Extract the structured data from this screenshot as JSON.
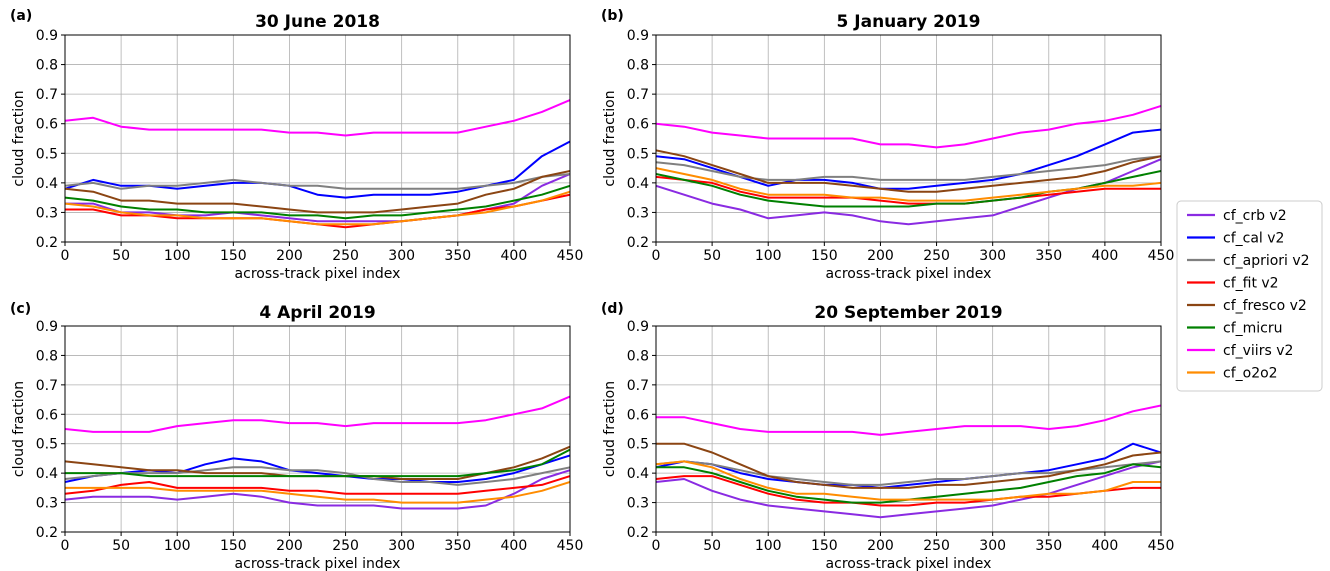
{
  "chart_data": [
    {
      "panel_label": "(a)",
      "type": "line",
      "title": "30 June 2018",
      "xlabel": "across-track pixel index",
      "ylabel": "cloud fraction",
      "xlim": [
        0,
        450
      ],
      "ylim": [
        0.2,
        0.9
      ],
      "x": [
        0,
        25,
        50,
        75,
        100,
        125,
        150,
        175,
        200,
        225,
        250,
        275,
        300,
        325,
        350,
        375,
        400,
        425,
        450
      ],
      "series": [
        {
          "name": "cf_crb v2",
          "color": "#8a2be2",
          "values": [
            0.33,
            0.33,
            0.3,
            0.3,
            0.29,
            0.29,
            0.3,
            0.29,
            0.28,
            0.27,
            0.27,
            0.27,
            0.27,
            0.28,
            0.29,
            0.31,
            0.33,
            0.39,
            0.43
          ]
        },
        {
          "name": "cf_cal v2",
          "color": "#0000ff",
          "values": [
            0.38,
            0.41,
            0.39,
            0.39,
            0.38,
            0.39,
            0.4,
            0.4,
            0.39,
            0.36,
            0.35,
            0.36,
            0.36,
            0.36,
            0.37,
            0.39,
            0.41,
            0.49,
            0.54
          ]
        },
        {
          "name": "cf_apriori v2",
          "color": "#808080",
          "values": [
            0.39,
            0.4,
            0.38,
            0.39,
            0.39,
            0.4,
            0.41,
            0.4,
            0.39,
            0.39,
            0.38,
            0.38,
            0.38,
            0.38,
            0.38,
            0.39,
            0.4,
            0.42,
            0.43
          ]
        },
        {
          "name": "cf_fit v2",
          "color": "#ff0000",
          "values": [
            0.31,
            0.31,
            0.29,
            0.29,
            0.28,
            0.28,
            0.28,
            0.28,
            0.27,
            0.26,
            0.25,
            0.26,
            0.27,
            0.28,
            0.29,
            0.31,
            0.32,
            0.34,
            0.36
          ]
        },
        {
          "name": "cf_fresco v2",
          "color": "#8b4513",
          "values": [
            0.38,
            0.37,
            0.34,
            0.34,
            0.33,
            0.33,
            0.33,
            0.32,
            0.31,
            0.3,
            0.3,
            0.3,
            0.31,
            0.32,
            0.33,
            0.36,
            0.38,
            0.42,
            0.44
          ]
        },
        {
          "name": "cf_micru",
          "color": "#008000",
          "values": [
            0.35,
            0.34,
            0.32,
            0.31,
            0.31,
            0.3,
            0.3,
            0.3,
            0.29,
            0.29,
            0.28,
            0.29,
            0.29,
            0.3,
            0.31,
            0.32,
            0.34,
            0.36,
            0.39
          ]
        },
        {
          "name": "cf_viirs v2",
          "color": "#ff00ff",
          "values": [
            0.61,
            0.62,
            0.59,
            0.58,
            0.58,
            0.58,
            0.58,
            0.58,
            0.57,
            0.57,
            0.56,
            0.57,
            0.57,
            0.57,
            0.57,
            0.59,
            0.61,
            0.64,
            0.68
          ]
        },
        {
          "name": "cf_o2o2",
          "color": "#ff8c00",
          "values": [
            0.33,
            0.32,
            0.3,
            0.29,
            0.29,
            0.28,
            0.28,
            0.28,
            0.27,
            0.26,
            0.26,
            0.26,
            0.27,
            0.28,
            0.29,
            0.3,
            0.32,
            0.34,
            0.37
          ]
        }
      ]
    },
    {
      "panel_label": "(b)",
      "type": "line",
      "title": "5 January 2019",
      "xlabel": "across-track pixel index",
      "ylabel": "cloud fraction",
      "xlim": [
        0,
        450
      ],
      "ylim": [
        0.2,
        0.9
      ],
      "x": [
        0,
        25,
        50,
        75,
        100,
        125,
        150,
        175,
        200,
        225,
        250,
        275,
        300,
        325,
        350,
        375,
        400,
        425,
        450
      ],
      "series": [
        {
          "name": "cf_crb v2",
          "color": "#8a2be2",
          "values": [
            0.39,
            0.36,
            0.33,
            0.31,
            0.28,
            0.29,
            0.3,
            0.29,
            0.27,
            0.26,
            0.27,
            0.28,
            0.29,
            0.32,
            0.35,
            0.38,
            0.4,
            0.44,
            0.48
          ]
        },
        {
          "name": "cf_cal v2",
          "color": "#0000ff",
          "values": [
            0.49,
            0.48,
            0.45,
            0.42,
            0.39,
            0.41,
            0.41,
            0.4,
            0.38,
            0.38,
            0.39,
            0.4,
            0.41,
            0.43,
            0.46,
            0.49,
            0.53,
            0.57,
            0.58
          ]
        },
        {
          "name": "cf_apriori v2",
          "color": "#808080",
          "values": [
            0.47,
            0.46,
            0.44,
            0.42,
            0.41,
            0.41,
            0.42,
            0.42,
            0.41,
            0.41,
            0.41,
            0.41,
            0.42,
            0.43,
            0.44,
            0.45,
            0.46,
            0.48,
            0.49
          ]
        },
        {
          "name": "cf_fit v2",
          "color": "#ff0000",
          "values": [
            0.42,
            0.41,
            0.4,
            0.37,
            0.35,
            0.35,
            0.35,
            0.35,
            0.34,
            0.33,
            0.33,
            0.33,
            0.34,
            0.35,
            0.36,
            0.37,
            0.38,
            0.38,
            0.38
          ]
        },
        {
          "name": "cf_fresco v2",
          "color": "#8b4513",
          "values": [
            0.51,
            0.49,
            0.46,
            0.43,
            0.4,
            0.4,
            0.4,
            0.39,
            0.38,
            0.37,
            0.37,
            0.38,
            0.39,
            0.4,
            0.41,
            0.42,
            0.44,
            0.47,
            0.49
          ]
        },
        {
          "name": "cf_micru",
          "color": "#008000",
          "values": [
            0.43,
            0.41,
            0.39,
            0.36,
            0.34,
            0.33,
            0.32,
            0.32,
            0.32,
            0.32,
            0.33,
            0.33,
            0.34,
            0.35,
            0.37,
            0.38,
            0.4,
            0.42,
            0.44
          ]
        },
        {
          "name": "cf_viirs v2",
          "color": "#ff00ff",
          "values": [
            0.6,
            0.59,
            0.57,
            0.56,
            0.55,
            0.55,
            0.55,
            0.55,
            0.53,
            0.53,
            0.52,
            0.53,
            0.55,
            0.57,
            0.58,
            0.6,
            0.61,
            0.63,
            0.66
          ]
        },
        {
          "name": "cf_o2o2",
          "color": "#ff8c00",
          "values": [
            0.45,
            0.43,
            0.41,
            0.38,
            0.36,
            0.36,
            0.36,
            0.35,
            0.35,
            0.34,
            0.34,
            0.34,
            0.35,
            0.36,
            0.37,
            0.38,
            0.39,
            0.39,
            0.4
          ]
        }
      ]
    },
    {
      "panel_label": "(c)",
      "type": "line",
      "title": "4 April 2019",
      "xlabel": "across-track pixel index",
      "ylabel": "cloud fraction",
      "xlim": [
        0,
        450
      ],
      "ylim": [
        0.2,
        0.9
      ],
      "x": [
        0,
        25,
        50,
        75,
        100,
        125,
        150,
        175,
        200,
        225,
        250,
        275,
        300,
        325,
        350,
        375,
        400,
        425,
        450
      ],
      "series": [
        {
          "name": "cf_crb v2",
          "color": "#8a2be2",
          "values": [
            0.31,
            0.32,
            0.32,
            0.32,
            0.31,
            0.32,
            0.33,
            0.32,
            0.3,
            0.29,
            0.29,
            0.29,
            0.28,
            0.28,
            0.28,
            0.29,
            0.33,
            0.38,
            0.41
          ]
        },
        {
          "name": "cf_cal v2",
          "color": "#0000ff",
          "values": [
            0.37,
            0.39,
            0.4,
            0.41,
            0.4,
            0.43,
            0.45,
            0.44,
            0.41,
            0.4,
            0.39,
            0.38,
            0.38,
            0.37,
            0.37,
            0.38,
            0.4,
            0.43,
            0.46
          ]
        },
        {
          "name": "cf_apriori v2",
          "color": "#808080",
          "values": [
            0.38,
            0.39,
            0.4,
            0.4,
            0.4,
            0.41,
            0.42,
            0.42,
            0.41,
            0.41,
            0.4,
            0.38,
            0.37,
            0.37,
            0.36,
            0.37,
            0.38,
            0.4,
            0.42
          ]
        },
        {
          "name": "cf_fit v2",
          "color": "#ff0000",
          "values": [
            0.33,
            0.34,
            0.36,
            0.37,
            0.35,
            0.35,
            0.35,
            0.35,
            0.34,
            0.34,
            0.33,
            0.33,
            0.33,
            0.33,
            0.33,
            0.34,
            0.35,
            0.36,
            0.39
          ]
        },
        {
          "name": "cf_fresco v2",
          "color": "#8b4513",
          "values": [
            0.44,
            0.43,
            0.42,
            0.41,
            0.41,
            0.4,
            0.4,
            0.4,
            0.39,
            0.39,
            0.39,
            0.39,
            0.38,
            0.38,
            0.38,
            0.4,
            0.42,
            0.45,
            0.49
          ]
        },
        {
          "name": "cf_micru",
          "color": "#008000",
          "values": [
            0.4,
            0.4,
            0.4,
            0.39,
            0.39,
            0.39,
            0.39,
            0.39,
            0.39,
            0.39,
            0.39,
            0.39,
            0.39,
            0.39,
            0.39,
            0.4,
            0.41,
            0.43,
            0.48
          ]
        },
        {
          "name": "cf_viirs v2",
          "color": "#ff00ff",
          "values": [
            0.55,
            0.54,
            0.54,
            0.54,
            0.56,
            0.57,
            0.58,
            0.58,
            0.57,
            0.57,
            0.56,
            0.57,
            0.57,
            0.57,
            0.57,
            0.58,
            0.6,
            0.62,
            0.66
          ]
        },
        {
          "name": "cf_o2o2",
          "color": "#ff8c00",
          "values": [
            0.35,
            0.35,
            0.35,
            0.35,
            0.34,
            0.34,
            0.34,
            0.34,
            0.33,
            0.32,
            0.31,
            0.31,
            0.3,
            0.3,
            0.3,
            0.31,
            0.32,
            0.34,
            0.37
          ]
        }
      ]
    },
    {
      "panel_label": "(d)",
      "type": "line",
      "title": "20 September 2019",
      "xlabel": "across-track pixel index",
      "ylabel": "cloud fraction",
      "xlim": [
        0,
        450
      ],
      "ylim": [
        0.2,
        0.9
      ],
      "x": [
        0,
        25,
        50,
        75,
        100,
        125,
        150,
        175,
        200,
        225,
        250,
        275,
        300,
        325,
        350,
        375,
        400,
        425,
        450
      ],
      "series": [
        {
          "name": "cf_crb v2",
          "color": "#8a2be2",
          "values": [
            0.37,
            0.38,
            0.34,
            0.31,
            0.29,
            0.28,
            0.27,
            0.26,
            0.25,
            0.26,
            0.27,
            0.28,
            0.29,
            0.31,
            0.33,
            0.36,
            0.39,
            0.42,
            0.44
          ]
        },
        {
          "name": "cf_cal v2",
          "color": "#0000ff",
          "values": [
            0.42,
            0.44,
            0.43,
            0.4,
            0.38,
            0.37,
            0.36,
            0.36,
            0.35,
            0.36,
            0.37,
            0.38,
            0.39,
            0.4,
            0.41,
            0.43,
            0.45,
            0.5,
            0.47
          ]
        },
        {
          "name": "cf_apriori v2",
          "color": "#808080",
          "values": [
            0.43,
            0.44,
            0.43,
            0.41,
            0.39,
            0.38,
            0.37,
            0.36,
            0.36,
            0.37,
            0.38,
            0.38,
            0.39,
            0.4,
            0.4,
            0.41,
            0.42,
            0.43,
            0.44
          ]
        },
        {
          "name": "cf_fit v2",
          "color": "#ff0000",
          "values": [
            0.38,
            0.39,
            0.39,
            0.36,
            0.33,
            0.31,
            0.3,
            0.3,
            0.29,
            0.29,
            0.3,
            0.3,
            0.31,
            0.32,
            0.32,
            0.33,
            0.34,
            0.35,
            0.35
          ]
        },
        {
          "name": "cf_fresco v2",
          "color": "#8b4513",
          "values": [
            0.5,
            0.5,
            0.47,
            0.43,
            0.39,
            0.37,
            0.36,
            0.35,
            0.35,
            0.35,
            0.36,
            0.36,
            0.37,
            0.38,
            0.39,
            0.41,
            0.43,
            0.46,
            0.47
          ]
        },
        {
          "name": "cf_micru",
          "color": "#008000",
          "values": [
            0.42,
            0.42,
            0.4,
            0.37,
            0.34,
            0.32,
            0.31,
            0.3,
            0.3,
            0.31,
            0.32,
            0.33,
            0.34,
            0.35,
            0.37,
            0.39,
            0.4,
            0.43,
            0.42
          ]
        },
        {
          "name": "cf_viirs v2",
          "color": "#ff00ff",
          "values": [
            0.59,
            0.59,
            0.57,
            0.55,
            0.54,
            0.54,
            0.54,
            0.54,
            0.53,
            0.54,
            0.55,
            0.56,
            0.56,
            0.56,
            0.55,
            0.56,
            0.58,
            0.61,
            0.63
          ]
        },
        {
          "name": "cf_o2o2",
          "color": "#ff8c00",
          "values": [
            0.43,
            0.44,
            0.42,
            0.38,
            0.35,
            0.33,
            0.33,
            0.32,
            0.31,
            0.31,
            0.31,
            0.31,
            0.31,
            0.32,
            0.33,
            0.33,
            0.34,
            0.37,
            0.37
          ]
        }
      ]
    }
  ],
  "legend": {
    "placement": "right",
    "items": [
      {
        "name": "cf_crb v2",
        "color": "#8a2be2"
      },
      {
        "name": "cf_cal v2",
        "color": "#0000ff"
      },
      {
        "name": "cf_apriori v2",
        "color": "#808080"
      },
      {
        "name": "cf_fit v2",
        "color": "#ff0000"
      },
      {
        "name": "cf_fresco v2",
        "color": "#8b4513"
      },
      {
        "name": "cf_micru",
        "color": "#008000"
      },
      {
        "name": "cf_viirs v2",
        "color": "#ff00ff"
      },
      {
        "name": "cf_o2o2",
        "color": "#ff8c00"
      }
    ]
  },
  "grid": true
}
